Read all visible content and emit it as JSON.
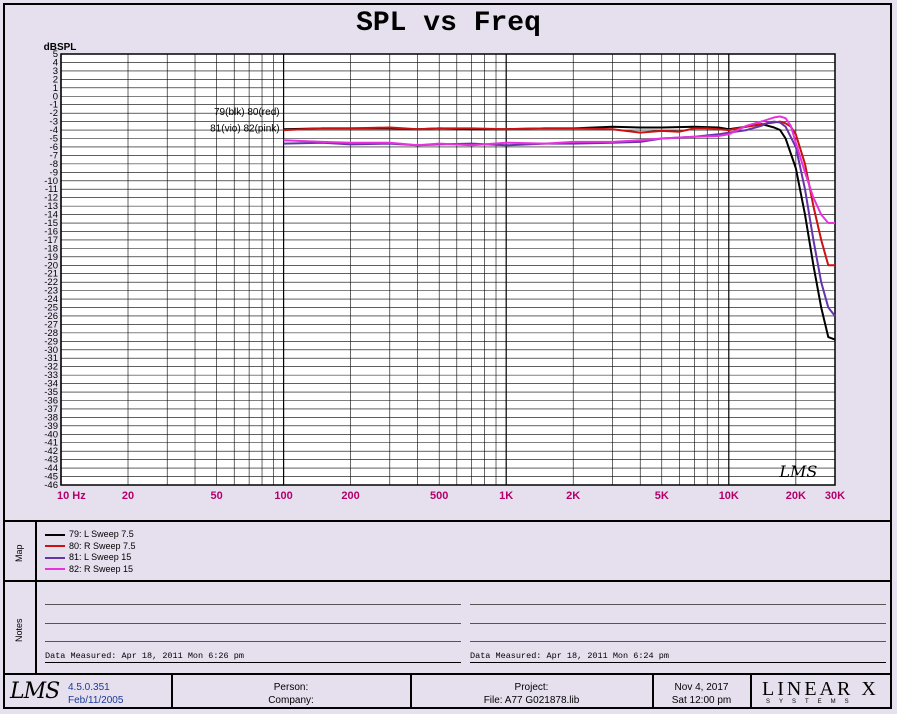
{
  "chart_data": {
    "type": "line",
    "title": "SPL vs Freq",
    "ylabel": "dBSPL",
    "xscale": "log",
    "xlim": [
      10,
      30000
    ],
    "ylim": [
      -46,
      5
    ],
    "ytick_labels": [
      "5",
      "4",
      "3",
      "2",
      "1",
      "0",
      "-1",
      "-2",
      "-3",
      "-4",
      "-5",
      "-6",
      "-7",
      "-8",
      "-9",
      "-10",
      "-11",
      "-12",
      "-13",
      "-14",
      "-15",
      "-16",
      "-17",
      "-18",
      "-19",
      "-20",
      "-21",
      "-22",
      "-23",
      "-24",
      "-25",
      "-26",
      "-27",
      "-28",
      "-29",
      "-30",
      "-31",
      "-32",
      "-33",
      "-34",
      "-35",
      "-36",
      "-37",
      "-38",
      "-39",
      "-40",
      "-41",
      "-42",
      "-43",
      "-44",
      "-45",
      "-46"
    ],
    "xticks": [
      {
        "v": 10,
        "label": "10 Hz"
      },
      {
        "v": 20,
        "label": "20"
      },
      {
        "v": 50,
        "label": "50"
      },
      {
        "v": 100,
        "label": "100"
      },
      {
        "v": 200,
        "label": "200"
      },
      {
        "v": 500,
        "label": "500"
      },
      {
        "v": 1000,
        "label": "1K"
      },
      {
        "v": 2000,
        "label": "2K"
      },
      {
        "v": 5000,
        "label": "5K"
      },
      {
        "v": 10000,
        "label": "10K"
      },
      {
        "v": 20000,
        "label": "20K"
      },
      {
        "v": 30000,
        "label": "30K"
      }
    ],
    "grid": true,
    "annotations": [
      "79(blk) 80(red)",
      "81(vio) 82(pink)"
    ],
    "watermark": "LMS",
    "series": [
      {
        "name": "79: L Sweep 7.5",
        "color": "#000000",
        "x": [
          100,
          150,
          200,
          300,
          400,
          500,
          700,
          1000,
          1500,
          2000,
          3000,
          4000,
          5000,
          7000,
          9000,
          10000,
          12000,
          14000,
          15000,
          16000,
          17000,
          18000,
          20000,
          22000,
          24000,
          26000,
          28000,
          30000
        ],
        "y": [
          -3.9,
          -3.8,
          -3.8,
          -3.8,
          -3.9,
          -3.8,
          -3.9,
          -3.9,
          -3.8,
          -3.8,
          -3.6,
          -3.7,
          -3.7,
          -3.6,
          -3.7,
          -3.9,
          -3.6,
          -3.3,
          -3.5,
          -3.7,
          -4.0,
          -5.0,
          -8.5,
          -14,
          -20,
          -25,
          -28.5,
          -28.8
        ]
      },
      {
        "name": "80: R Sweep 7.5",
        "color": "#cc1111",
        "x": [
          100,
          150,
          200,
          300,
          400,
          500,
          700,
          1000,
          1500,
          2000,
          3000,
          4000,
          5000,
          6000,
          7000,
          8000,
          10000,
          12000,
          15000,
          17000,
          18000,
          19000,
          20000,
          22000,
          24000,
          26000,
          28000,
          30000
        ],
        "y": [
          -4.0,
          -3.8,
          -3.8,
          -3.7,
          -3.9,
          -3.8,
          -3.8,
          -3.9,
          -3.8,
          -3.8,
          -3.9,
          -4.3,
          -4.1,
          -4.2,
          -3.8,
          -3.8,
          -4.0,
          -3.6,
          -3.2,
          -3.0,
          -3.2,
          -3.6,
          -4.5,
          -8,
          -13,
          -17,
          -20,
          -20
        ]
      },
      {
        "name": "81: L Sweep 15",
        "color": "#6633aa",
        "x": [
          100,
          150,
          200,
          300,
          400,
          500,
          700,
          1000,
          1500,
          2000,
          3000,
          4000,
          5000,
          7000,
          9000,
          10000,
          12000,
          14000,
          15000,
          16000,
          17000,
          18000,
          20000,
          22000,
          24000,
          26000,
          28000,
          30000
        ],
        "y": [
          -5.6,
          -5.5,
          -5.7,
          -5.6,
          -5.8,
          -5.7,
          -5.6,
          -5.8,
          -5.6,
          -5.6,
          -5.5,
          -5.4,
          -5.0,
          -4.8,
          -4.5,
          -4.3,
          -4.0,
          -3.5,
          -3.1,
          -3.0,
          -3.1,
          -3.6,
          -6.0,
          -11,
          -17,
          -22,
          -25,
          -26
        ]
      },
      {
        "name": "82: R Sweep 15",
        "color": "#e833dd",
        "x": [
          100,
          150,
          200,
          300,
          400,
          500,
          700,
          1000,
          1500,
          2000,
          3000,
          4000,
          5000,
          7000,
          9000,
          10000,
          12000,
          14000,
          16000,
          17000,
          18000,
          19000,
          20000,
          22000,
          24000,
          26000,
          28000,
          30000
        ],
        "y": [
          -5.2,
          -5.4,
          -5.5,
          -5.5,
          -5.8,
          -5.6,
          -5.8,
          -5.5,
          -5.6,
          -5.4,
          -5.4,
          -5.2,
          -5.0,
          -4.8,
          -4.7,
          -4.5,
          -3.5,
          -3.0,
          -2.5,
          -2.4,
          -2.6,
          -3.5,
          -5.5,
          -9,
          -12,
          -14,
          -15,
          -15
        ]
      }
    ]
  },
  "legend": [
    {
      "label": "79: L Sweep 7.5",
      "color": "#000000"
    },
    {
      "label": "80: R Sweep 7.5",
      "color": "#cc1111"
    },
    {
      "label": "81: L Sweep 15",
      "color": "#6633aa"
    },
    {
      "label": "82: R Sweep 15",
      "color": "#e833dd"
    }
  ],
  "panels": {
    "map_label": "Map",
    "notes_label": "Notes"
  },
  "notes": {
    "left_measured": "Data Measured: Apr 18, 2011  Mon  6:26 pm",
    "right_measured": "Data Measured: Apr 18, 2011  Mon  6:24 pm"
  },
  "footer": {
    "logo": "LMS",
    "version": "4.5.0.351",
    "build_date": "Feb/11/2005",
    "person": "Person:",
    "company": "Company:",
    "project": "Project:",
    "file": "File: A77 G021878.lib",
    "date": "Nov  4, 2017",
    "time": "Sat 12:00 pm",
    "brand": "LINEAR X",
    "brand_sub": "SYSTEMS"
  }
}
